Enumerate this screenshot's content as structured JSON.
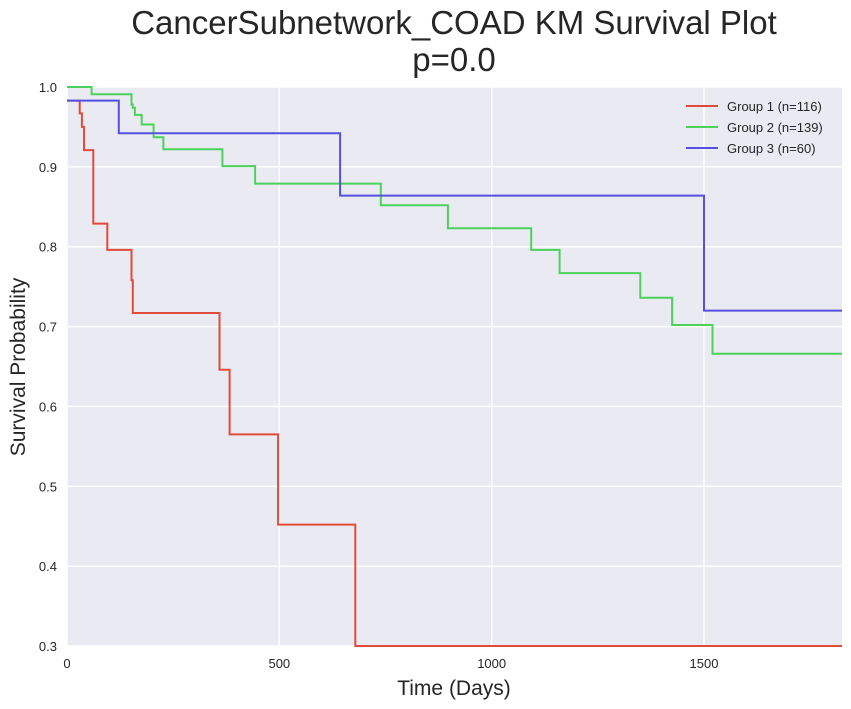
{
  "chart_data": {
    "type": "line",
    "title": "CancerSubnetwork_COAD KM Survival Plot",
    "subtitle": "p=0.0",
    "xlabel": "Time (Days)",
    "ylabel": "Survival Probability",
    "xlim": [
      0,
      1825
    ],
    "ylim": [
      0.3,
      1.0
    ],
    "xticks": [
      0,
      500,
      1000,
      1500
    ],
    "yticks": [
      0.3,
      0.4,
      0.5,
      0.6,
      0.7,
      0.8,
      0.9,
      1.0
    ],
    "xtick_labels": [
      "0",
      "500",
      "1000",
      "1500"
    ],
    "ytick_labels": [
      "0.3",
      "0.4",
      "0.5",
      "0.6",
      "0.7",
      "0.8",
      "0.9",
      "1.0"
    ],
    "grid": true,
    "legend_position": "top-right",
    "series": [
      {
        "name": "Group 1 (n=116)",
        "color": "#e24a3b",
        "x": [
          0,
          27,
          30,
          35,
          40,
          58,
          62,
          95,
          152,
          155,
          359,
          383,
          497,
          679,
          1825
        ],
        "y": [
          0.983,
          0.983,
          0.967,
          0.95,
          0.921,
          0.921,
          0.829,
          0.796,
          0.758,
          0.717,
          0.646,
          0.565,
          0.452,
          0.3,
          0.3
        ]
      },
      {
        "name": "Group 2 (n=139)",
        "color": "#4bd25a",
        "x": [
          0,
          58,
          152,
          155,
          160,
          176,
          204,
          227,
          366,
          443,
          739,
          897,
          1093,
          1160,
          1350,
          1425,
          1520,
          1825
        ],
        "y": [
          1.0,
          0.991,
          0.978,
          0.974,
          0.965,
          0.953,
          0.937,
          0.922,
          0.901,
          0.879,
          0.852,
          0.823,
          0.796,
          0.767,
          0.736,
          0.702,
          0.666,
          0.666
        ]
      },
      {
        "name": "Group 3 (n=60)",
        "color": "#5550e0",
        "x": [
          0,
          122,
          643,
          1500,
          1825
        ],
        "y": [
          0.983,
          0.942,
          0.864,
          0.72,
          0.72
        ]
      }
    ]
  }
}
